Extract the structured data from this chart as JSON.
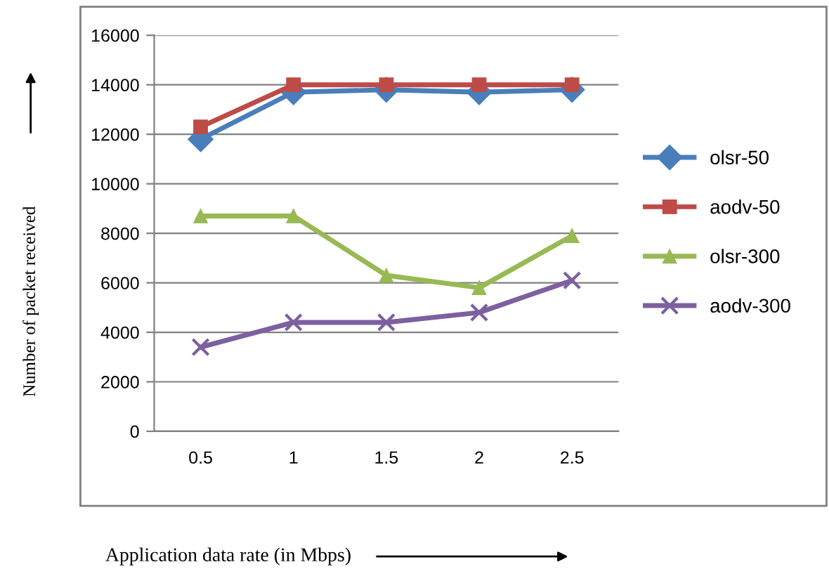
{
  "chart_data": {
    "type": "line",
    "xlabel": "Application data rate (in Mbps)",
    "ylabel": "Number of packet received",
    "categories": [
      "0.5",
      "1",
      "1.5",
      "2",
      "2.5"
    ],
    "series": [
      {
        "name": "olsr-50",
        "color": "#4a7ebb",
        "marker": "diamond",
        "values": [
          11800,
          13700,
          13800,
          13700,
          13800
        ]
      },
      {
        "name": "aodv-50",
        "color": "#be4b48",
        "marker": "square",
        "values": [
          12300,
          14000,
          14000,
          14000,
          14000
        ]
      },
      {
        "name": "olsr-300",
        "color": "#98b954",
        "marker": "triangle",
        "values": [
          8700,
          8700,
          6300,
          5800,
          7900
        ]
      },
      {
        "name": "aodv-300",
        "color": "#7d60a0",
        "marker": "cross",
        "values": [
          3400,
          4400,
          4400,
          4800,
          6100
        ]
      }
    ],
    "ylim": [
      0,
      16000
    ],
    "yticks": [
      0,
      2000,
      4000,
      6000,
      8000,
      10000,
      12000,
      14000,
      16000
    ],
    "grid": "y",
    "legend": "right",
    "line_style": "solid"
  }
}
